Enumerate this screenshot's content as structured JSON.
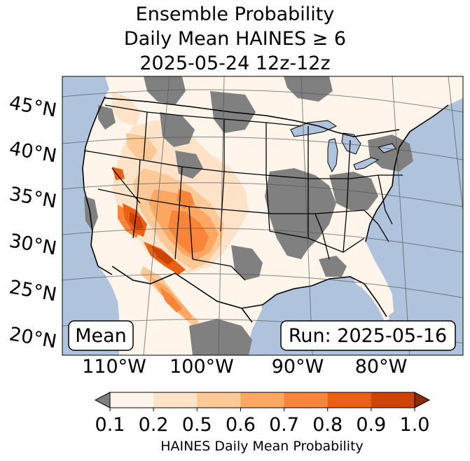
{
  "title": {
    "line1": "Ensemble Probability",
    "line2": "Daily Mean HAINES ≥ 6",
    "line3": "2025-05-24 12z-12z"
  },
  "map": {
    "latitude_labels": [
      "45°N",
      "40°N",
      "35°N",
      "30°N",
      "25°N",
      "20°N"
    ],
    "longitude_labels": [
      "110°W",
      "100°W",
      "90°W",
      "80°W"
    ],
    "mean_label": "Mean",
    "run_label": "Run: 2025-05-16"
  },
  "colorbar": {
    "ticks": [
      "0.1",
      "0.2",
      "0.5",
      "0.6",
      "0.7",
      "0.8",
      "0.9",
      "1.0"
    ],
    "label": "HAINES Daily Mean Probability",
    "under_color": "#808080",
    "colors": [
      "#fff5eb",
      "#fee3c8",
      "#fdc997",
      "#fda762",
      "#f9853a",
      "#ea6114",
      "#cd4401"
    ],
    "over_color": "#8a2c04"
  },
  "colors": {
    "ocean": "#afc3dc",
    "land_base": "#fff5eb",
    "gray_area": "#808080"
  }
}
